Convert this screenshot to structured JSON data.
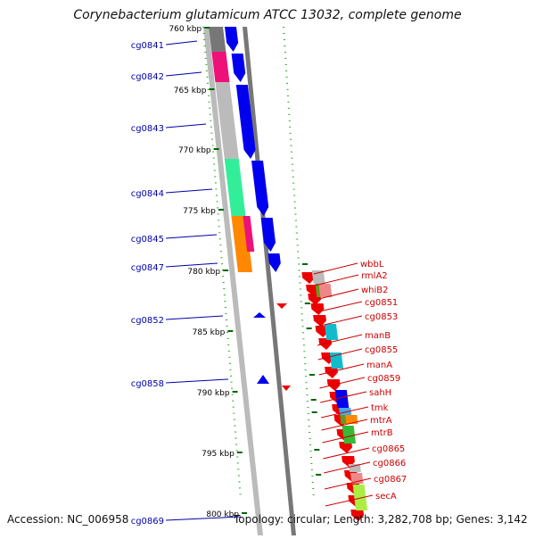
{
  "title": "Corynebacterium glutamicum ATCC 13032, complete genome",
  "footer": {
    "accession": "Accession: NC_006958",
    "summary": "Topology: circular; Length: 3,282,708 bp; Genes: 3,142"
  },
  "colors": {
    "strand_blue": "#0000ee",
    "strand_red": "#ee0000",
    "label_blue": "#0000aa",
    "label_red": "#cc0000",
    "tick_green": "#006600",
    "cog_magenta": "#ee1177",
    "cog_green": "#33ee99",
    "cog_orange": "#ff8800",
    "cog_gray": "#bbbbbb",
    "cog_cyan": "#11bbcc",
    "cog_lime": "#aaee44",
    "cog_olive": "#669922",
    "cog_salmon": "#ee8888",
    "cog_skyblue": "#44aaee"
  },
  "scale_labels": [
    "760 kbp",
    "765 kbp",
    "770 kbp",
    "775 kbp",
    "780 kbp",
    "785 kbp",
    "790 kbp",
    "795 kbp",
    "800 kbp"
  ],
  "left_genes": [
    "cg0841",
    "cg0842",
    "cg0843",
    "cg0844",
    "cg0845",
    "cg0847",
    "cg0852",
    "cg0858",
    "cg0869"
  ],
  "right_genes": [
    "wbbL",
    "rmlA2",
    "whiB2",
    "cg0851",
    "cg0853",
    "manB",
    "cg0855",
    "manA",
    "cg0859",
    "sahH",
    "tmk",
    "mtrA",
    "mtrB",
    "cg0865",
    "cg0866",
    "cg0867",
    "secA"
  ]
}
